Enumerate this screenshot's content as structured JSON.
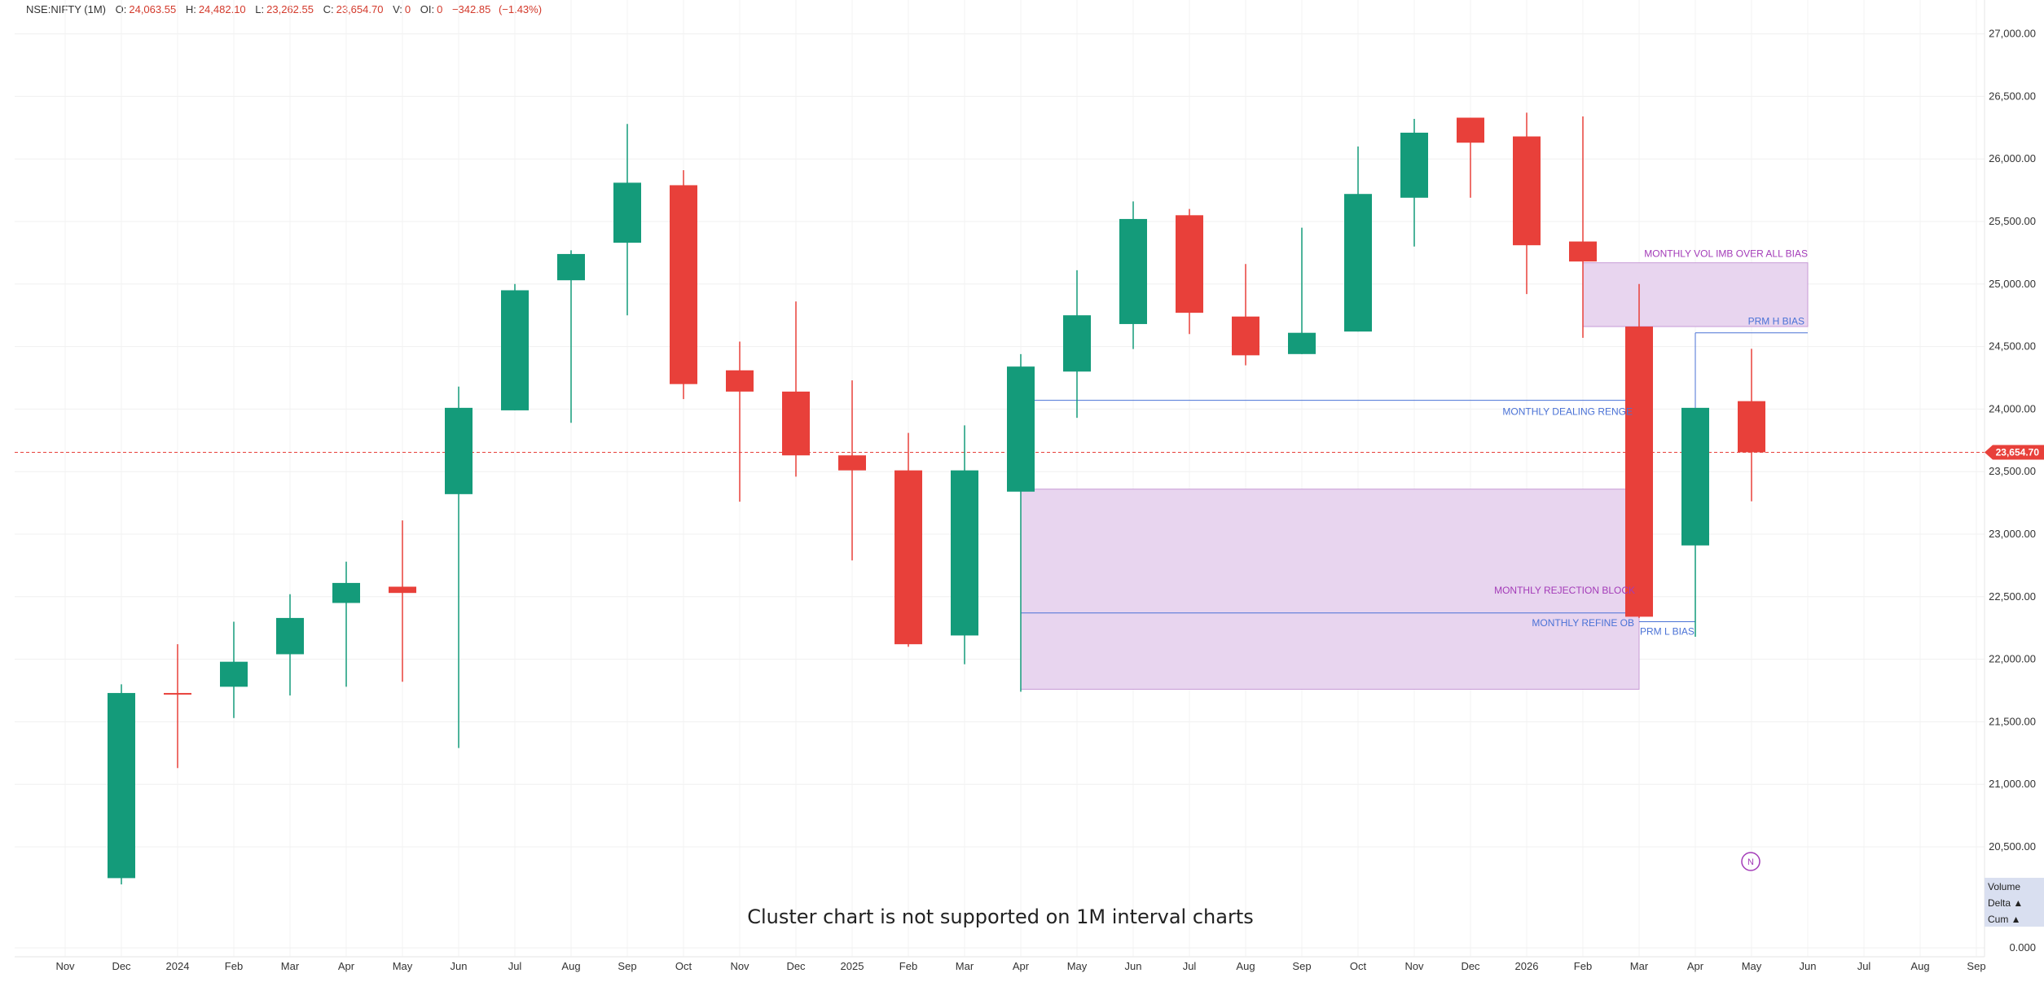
{
  "header": {
    "symbol": "NSE:NIFTY (1M)",
    "open_label": "O:",
    "open": "24,063.55",
    "high_label": "H:",
    "high": "24,482.10",
    "low_label": "L:",
    "low": "23,262.55",
    "close_label": "C:",
    "close": "23,654.70",
    "vol_label": "V:",
    "vol": "0",
    "oi_label": "OI:",
    "oi": "0",
    "change": "−342.85",
    "change_pct": "(−1.43%)"
  },
  "notice": "Cluster chart is not supported on 1M interval charts",
  "legend": {
    "volume": "Volume",
    "delta": "Delta ▲",
    "cum": "Cum ▲"
  },
  "last_price_label": "23,654.70",
  "colors": {
    "up": "#149b7a",
    "down": "#e8403a",
    "zone": "#e8d5ef",
    "zone_border": "#c79bd6",
    "line": "#4a72d6",
    "ann_purple": "#a33bb8",
    "ann_blue": "#4a72d6"
  },
  "chart_data": {
    "type": "candlestick",
    "y_ticks": [
      "27,000.00",
      "26,500.00",
      "26,000.00",
      "25,500.00",
      "25,000.00",
      "24,500.00",
      "24,000.00",
      "23,500.00",
      "23,000.00",
      "22,500.00",
      "22,000.00",
      "21,500.00",
      "21,000.00",
      "20,500.00",
      "0.000"
    ],
    "x_ticks": [
      "Nov",
      "Dec",
      "2024",
      "Feb",
      "Mar",
      "Apr",
      "May",
      "Jun",
      "Jul",
      "Aug",
      "Sep",
      "Oct",
      "Nov",
      "Dec",
      "2025",
      "Feb",
      "Mar",
      "Apr",
      "May",
      "Jun",
      "Jul",
      "Aug",
      "Sep",
      "Oct",
      "Nov",
      "Dec",
      "2026",
      "Feb",
      "Mar",
      "Apr",
      "May",
      "Jun",
      "Jul",
      "Aug",
      "Sep"
    ],
    "candles": [
      {
        "x": "Dec 2023",
        "o": 20250,
        "h": 21800,
        "l": 20200,
        "c": 21730
      },
      {
        "x": "Jan 2024",
        "o": 21730,
        "h": 22120,
        "l": 21130,
        "c": 21720
      },
      {
        "x": "Feb 2024",
        "o": 21780,
        "h": 22300,
        "l": 21530,
        "c": 21980
      },
      {
        "x": "Mar 2024",
        "o": 22040,
        "h": 22520,
        "l": 21710,
        "c": 22330
      },
      {
        "x": "Apr 2024",
        "o": 22450,
        "h": 22780,
        "l": 21780,
        "c": 22610
      },
      {
        "x": "May 2024",
        "o": 22580,
        "h": 23110,
        "l": 21820,
        "c": 22530
      },
      {
        "x": "Jun 2024",
        "o": 23320,
        "h": 24180,
        "l": 21290,
        "c": 24010
      },
      {
        "x": "Jul 2024",
        "o": 23990,
        "h": 25000,
        "l": 23990,
        "c": 24950
      },
      {
        "x": "Aug 2024",
        "o": 25030,
        "h": 25270,
        "l": 23890,
        "c": 25240
      },
      {
        "x": "Sep 2024",
        "o": 25330,
        "h": 26280,
        "l": 24750,
        "c": 25810
      },
      {
        "x": "Oct 2024",
        "o": 25790,
        "h": 25910,
        "l": 24080,
        "c": 24200
      },
      {
        "x": "Nov 2024",
        "o": 24310,
        "h": 24540,
        "l": 23260,
        "c": 24140
      },
      {
        "x": "Dec 2024",
        "o": 24140,
        "h": 24860,
        "l": 23460,
        "c": 23630
      },
      {
        "x": "Jan 2025",
        "o": 23630,
        "h": 24230,
        "l": 22790,
        "c": 23510
      },
      {
        "x": "Feb 2025",
        "o": 23510,
        "h": 23810,
        "l": 22100,
        "c": 22120
      },
      {
        "x": "Mar 2025",
        "o": 22190,
        "h": 23870,
        "l": 21960,
        "c": 23510
      },
      {
        "x": "Apr 2025",
        "o": 23340,
        "h": 24440,
        "l": 21740,
        "c": 24340
      },
      {
        "x": "May 2025",
        "o": 24300,
        "h": 25110,
        "l": 23930,
        "c": 24750
      },
      {
        "x": "Jun 2025",
        "o": 24680,
        "h": 25660,
        "l": 24480,
        "c": 25520
      },
      {
        "x": "Jul 2025",
        "o": 25550,
        "h": 25600,
        "l": 24600,
        "c": 24770
      },
      {
        "x": "Aug 2025",
        "o": 24740,
        "h": 25160,
        "l": 24350,
        "c": 24430
      },
      {
        "x": "Sep 2025",
        "o": 24440,
        "h": 25450,
        "l": 24440,
        "c": 24610
      },
      {
        "x": "Oct 2025",
        "o": 24620,
        "h": 26100,
        "l": 24620,
        "c": 25720
      },
      {
        "x": "Nov 2025",
        "o": 25690,
        "h": 26320,
        "l": 25300,
        "c": 26210
      },
      {
        "x": "Dec 2025",
        "o": 26330,
        "h": 26330,
        "l": 25690,
        "c": 26130
      },
      {
        "x": "Jan 2026",
        "o": 26180,
        "h": 26370,
        "l": 24920,
        "c": 25310
      },
      {
        "x": "Feb 2026",
        "o": 25340,
        "h": 26340,
        "l": 24570,
        "c": 25180
      },
      {
        "x": "Mar 2026",
        "o": 24660,
        "h": 25000,
        "l": 22330,
        "c": 22340
      },
      {
        "x": "Apr 2026",
        "o": 22910,
        "h": 24010,
        "l": 22180,
        "c": 24010
      },
      {
        "x": "May 2026",
        "o": 24063.55,
        "h": 24482.1,
        "l": 23262.55,
        "c": 23654.7
      }
    ],
    "last_price": 23654.7,
    "zones": [
      {
        "label": "MONTHLY VOL IMB OVER ALL BIAS",
        "from": "Feb 2026",
        "to": "Jun 2026",
        "low": 24660,
        "high": 25170
      },
      {
        "label": "MONTHLY REJECTION BLOCK",
        "from": "Apr 2025",
        "to": "Mar 2026",
        "low": 21760,
        "high": 23360
      }
    ],
    "lines": [
      {
        "label": "PRM H BIAS",
        "from": "Apr 2026",
        "to": "Jun 2026",
        "y": 24610
      },
      {
        "label": "MONTHLY DEALING RENGE",
        "from": "Apr 2025",
        "to": "Mar 2026",
        "y": 24070
      },
      {
        "label": "MONTHLY REFINE OB",
        "from": "Apr 2025",
        "to": "Mar 2026",
        "y": 22370
      },
      {
        "label": "PRM L BIAS",
        "from": "Mar 2026",
        "to": "Apr 2026",
        "y": 22300
      }
    ],
    "marker": "N"
  }
}
